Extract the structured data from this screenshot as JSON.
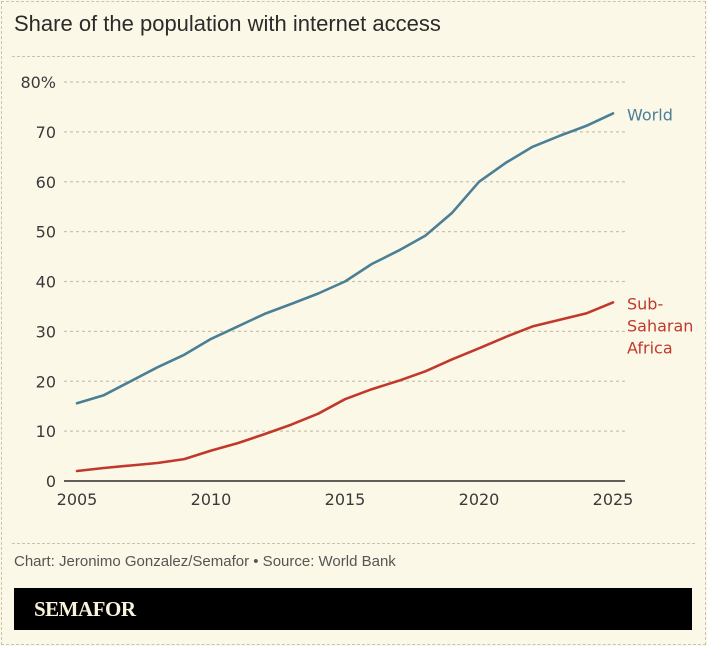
{
  "header": {
    "title": "Share of the population with internet access"
  },
  "footer": {
    "credit": "Chart: Jeronimo Gonzalez/Semafor • Source: World Bank",
    "brand": "SEMAFOR"
  },
  "colors": {
    "world": "#4b7f96",
    "ssa": "#c0392b",
    "grid": "#c9c3b0",
    "axis": "#2b2b2b",
    "background": "#fcf8e8"
  },
  "chart_data": {
    "type": "line",
    "title": "Share of the population with internet access",
    "xlabel": "",
    "ylabel": "",
    "xlim": [
      2005,
      2025
    ],
    "ylim": [
      0,
      80
    ],
    "grid": true,
    "x_ticks": [
      2005,
      2010,
      2015,
      2020,
      2025
    ],
    "y_ticks": [
      0,
      10,
      20,
      30,
      40,
      50,
      60,
      70,
      80
    ],
    "y_tick_labels": [
      "0",
      "10",
      "20",
      "30",
      "40",
      "50",
      "60",
      "70",
      "80%"
    ],
    "x": [
      2005,
      2006,
      2007,
      2008,
      2009,
      2010,
      2011,
      2012,
      2013,
      2014,
      2015,
      2016,
      2017,
      2018,
      2019,
      2020,
      2021,
      2022,
      2023,
      2024,
      2025
    ],
    "series": [
      {
        "name": "World",
        "label_lines": [
          "World"
        ],
        "color": "#4b7f96",
        "values": [
          15.6,
          17.2,
          20.0,
          22.8,
          25.3,
          28.5,
          31.0,
          33.5,
          35.5,
          37.6,
          40.0,
          43.5,
          46.2,
          49.2,
          53.8,
          60.0,
          63.8,
          67.0,
          69.2,
          71.2,
          73.7
        ]
      },
      {
        "name": "Sub-Saharan Africa",
        "label_lines": [
          "Sub-",
          "Saharan",
          "Africa"
        ],
        "color": "#c0392b",
        "values": [
          2.0,
          2.6,
          3.1,
          3.6,
          4.4,
          6.1,
          7.6,
          9.4,
          11.3,
          13.5,
          16.4,
          18.4,
          20.1,
          22.0,
          24.4,
          26.6,
          28.9,
          31.0,
          32.3,
          33.6,
          35.8
        ]
      }
    ],
    "legend": "inline-right"
  }
}
